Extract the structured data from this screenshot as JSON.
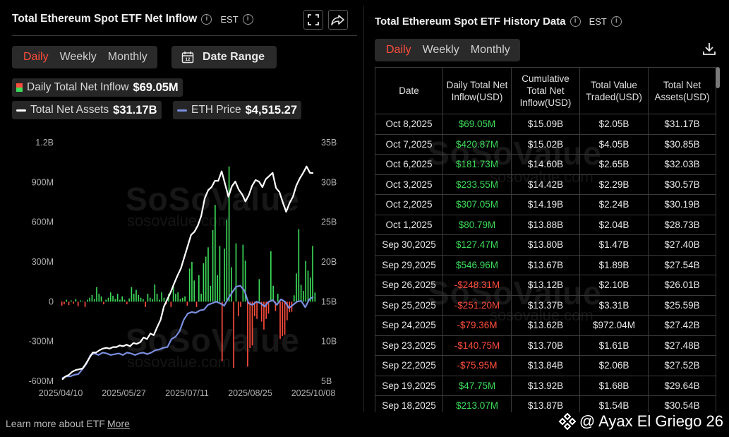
{
  "left_panel": {
    "title": "Total Ethereum Spot ETF Net Inflow",
    "timezone": "EST",
    "period_tabs": [
      "Daily",
      "Weekly",
      "Monthly"
    ],
    "active_tab": "Daily",
    "date_range_label": "Date Range",
    "legend": {
      "inflow_label": "Daily Total Net Inflow",
      "inflow_value": "$69.05M",
      "assets_label": "Total Net Assets",
      "assets_value": "$31.17B",
      "price_label": "ETH Price",
      "price_value": "$4,515.27"
    },
    "watermark": "SoSoValue",
    "watermark_url": "sosovalue.com"
  },
  "right_panel": {
    "title": "Total Ethereum Spot ETF History Data",
    "timezone": "EST",
    "period_tabs": [
      "Daily",
      "Weekly",
      "Monthly"
    ],
    "active_tab": "Daily",
    "columns": [
      "Date",
      "Daily Total Net Inflow(USD)",
      "Cumulative Total Net Inflow(USD)",
      "Total Value Traded(USD)",
      "Total Net Assets(USD)"
    ],
    "rows": [
      [
        "Oct 8,2025",
        "$69.05M",
        "$15.09B",
        "$2.05B",
        "$31.17B"
      ],
      [
        "Oct 7,2025",
        "$420.87M",
        "$15.02B",
        "$4.05B",
        "$30.85B"
      ],
      [
        "Oct 6,2025",
        "$181.73M",
        "$14.60B",
        "$2.65B",
        "$32.03B"
      ],
      [
        "Oct 3,2025",
        "$233.55M",
        "$14.42B",
        "$2.29B",
        "$30.57B"
      ],
      [
        "Oct 2,2025",
        "$307.05M",
        "$14.19B",
        "$2.24B",
        "$30.19B"
      ],
      [
        "Oct 1,2025",
        "$80.79M",
        "$13.88B",
        "$2.04B",
        "$28.73B"
      ],
      [
        "Sep 30,2025",
        "$127.47M",
        "$13.80B",
        "$1.47B",
        "$27.40B"
      ],
      [
        "Sep 29,2025",
        "$546.96M",
        "$13.67B",
        "$1.89B",
        "$27.54B"
      ],
      [
        "Sep 26,2025",
        "-$248.31M",
        "$13.12B",
        "$2.10B",
        "$26.01B"
      ],
      [
        "Sep 25,2025",
        "-$251.20M",
        "$13.37B",
        "$3.31B",
        "$25.59B"
      ],
      [
        "Sep 24,2025",
        "-$79.36M",
        "$13.62B",
        "$972.04M",
        "$27.42B"
      ],
      [
        "Sep 23,2025",
        "-$140.75M",
        "$13.70B",
        "$1.61B",
        "$27.48B"
      ],
      [
        "Sep 22,2025",
        "-$75.95M",
        "$13.84B",
        "$2.06B",
        "$27.52B"
      ],
      [
        "Sep 19,2025",
        "$47.75M",
        "$13.92B",
        "$1.68B",
        "$29.64B"
      ],
      [
        "Sep 18,2025",
        "$213.07M",
        "$13.87B",
        "$1.54B",
        "$30.54B"
      ]
    ]
  },
  "footer": {
    "learn_text": "Learn more about ETF",
    "more_link": "More",
    "credit": "@ Ayax El Griego 26"
  },
  "colors": {
    "positive": "#3ddc5a",
    "negative": "#ff4d3d",
    "assets_line": "#ffffff",
    "price_line": "#7a8fe0",
    "active_tab": "#ff4d3d"
  },
  "chart_data": {
    "type": "bar",
    "x_tick_labels": [
      "2025/04/10",
      "2025/05/27",
      "2025/07/11",
      "2025/08/25",
      "2025/10/08"
    ],
    "y_left": {
      "ticks": [
        "-600M",
        "-300M",
        "0",
        "300M",
        "600M",
        "900M",
        "1.2B"
      ],
      "range": [
        -600,
        1200
      ],
      "unit": "M"
    },
    "y_right": {
      "ticks": [
        "5B",
        "10B",
        "15B",
        "20B",
        "25B",
        "30B",
        "35B"
      ],
      "range": [
        5,
        35
      ],
      "unit": "B"
    },
    "series": [
      {
        "name": "Daily Total Net Inflow",
        "type": "bar",
        "values": [
          -30,
          -20,
          15,
          -25,
          10,
          -15,
          20,
          -35,
          10,
          5,
          -40,
          15,
          30,
          50,
          20,
          110,
          60,
          40,
          -20,
          15,
          30,
          70,
          45,
          20,
          60,
          15,
          40,
          15,
          -20,
          25,
          110,
          60,
          90,
          50,
          30,
          20,
          -40,
          60,
          30,
          20,
          130,
          60,
          15,
          70,
          30,
          -20,
          60,
          -40,
          120,
          60,
          70,
          20,
          30,
          40,
          -30,
          250,
          300,
          160,
          -40,
          200,
          60,
          290,
          340,
          410,
          120,
          540,
          730,
          200,
          420,
          -450,
          400,
          620,
          1020,
          260,
          -500,
          440,
          -110,
          -40,
          430,
          310,
          -490,
          -350,
          -330,
          -110,
          -130,
          170,
          -150,
          -210,
          -130,
          -90,
          380,
          120,
          -70,
          60,
          -280,
          -260,
          -250,
          -140,
          -80,
          -76,
          48,
          213,
          547,
          127,
          81,
          307,
          234,
          182,
          421,
          69
        ]
      },
      {
        "name": "Total Net Assets",
        "type": "line",
        "values": [
          5.2,
          5.6,
          5.8,
          6.2,
          6.4,
          6.5,
          6.6,
          7.2,
          7.9,
          8.6,
          8.6,
          8.9,
          9.1,
          9.2,
          9.1,
          9.3,
          9.3,
          9.5,
          9.4,
          9.6,
          9.4,
          9.8,
          9.7,
          9.9,
          10.5,
          10.3,
          11,
          10.8,
          11.8,
          12.7,
          14.4,
          15.3,
          16.2,
          17.3,
          18.3,
          19.2,
          20.6,
          22,
          23.4,
          23.8,
          24.6,
          25.8,
          28,
          29,
          29.4,
          30.2,
          30.2,
          31.4,
          29.8,
          28.2,
          29.5,
          30.1,
          29.1,
          28.5,
          27.6,
          28.4,
          29.6,
          30.3,
          30.1,
          29.4,
          30.4,
          30.8,
          31.2,
          29.3,
          28.8,
          27.5,
          26.3,
          27.4,
          28.2,
          29.6,
          30.5,
          31.2,
          32,
          31.2,
          31.17
        ]
      },
      {
        "name": "ETH Price",
        "type": "line",
        "values": [
          5.4,
          5.6,
          5.6,
          5.8,
          5.9,
          6.5,
          7.2,
          8.3,
          8.5,
          8.3,
          8.6,
          8.5,
          8.3,
          8.4,
          8.5,
          8.3,
          8.6,
          8.5,
          8.3,
          8.5,
          8.6,
          8.4,
          8.6,
          8.9,
          9.0,
          9.2,
          9.3,
          10.3,
          10.6,
          11.3,
          12.7,
          13.5,
          13.7,
          13.6,
          13.9,
          14.0,
          14.6,
          14.8,
          15.0,
          14.8,
          14.5,
          15.4,
          16.2,
          16.9,
          17.0,
          16.4,
          14.8,
          14.6,
          15.0,
          14.8,
          14.4,
          15.0,
          15.2,
          14.6,
          15.3,
          15.0,
          14.2,
          14.6,
          15.0,
          15.1,
          14.3,
          15.3,
          15.6
        ]
      }
    ]
  }
}
